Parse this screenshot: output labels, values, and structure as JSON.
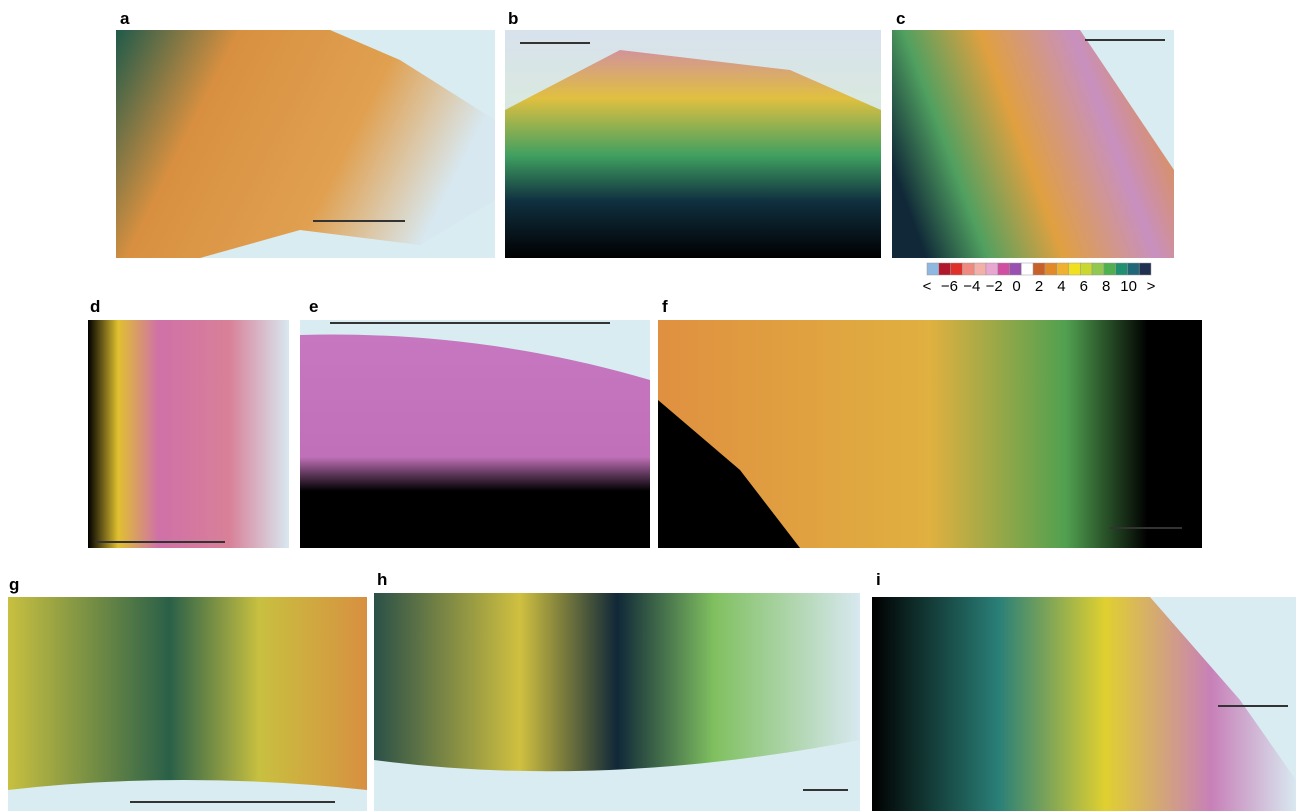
{
  "panels": [
    {
      "label": "a"
    },
    {
      "label": "b"
    },
    {
      "label": "c"
    },
    {
      "label": "d"
    },
    {
      "label": "e"
    },
    {
      "label": "f"
    },
    {
      "label": "g"
    },
    {
      "label": "h"
    },
    {
      "label": "i"
    }
  ],
  "colorbar": {
    "colors": [
      "#8fb8e0",
      "#b2182b",
      "#e0302a",
      "#f08a80",
      "#f4b0a8",
      "#e8a6d0",
      "#d04fa0",
      "#9a50b0",
      "#ffffff",
      "#c8602a",
      "#e08a2a",
      "#f0b030",
      "#f0e020",
      "#c8d830",
      "#90c850",
      "#50b050",
      "#209070",
      "#206878",
      "#203050"
    ],
    "labels": [
      "<",
      "−6",
      "−4",
      "−2",
      "0",
      "2",
      "4",
      "6",
      "8",
      "10",
      ">"
    ]
  }
}
